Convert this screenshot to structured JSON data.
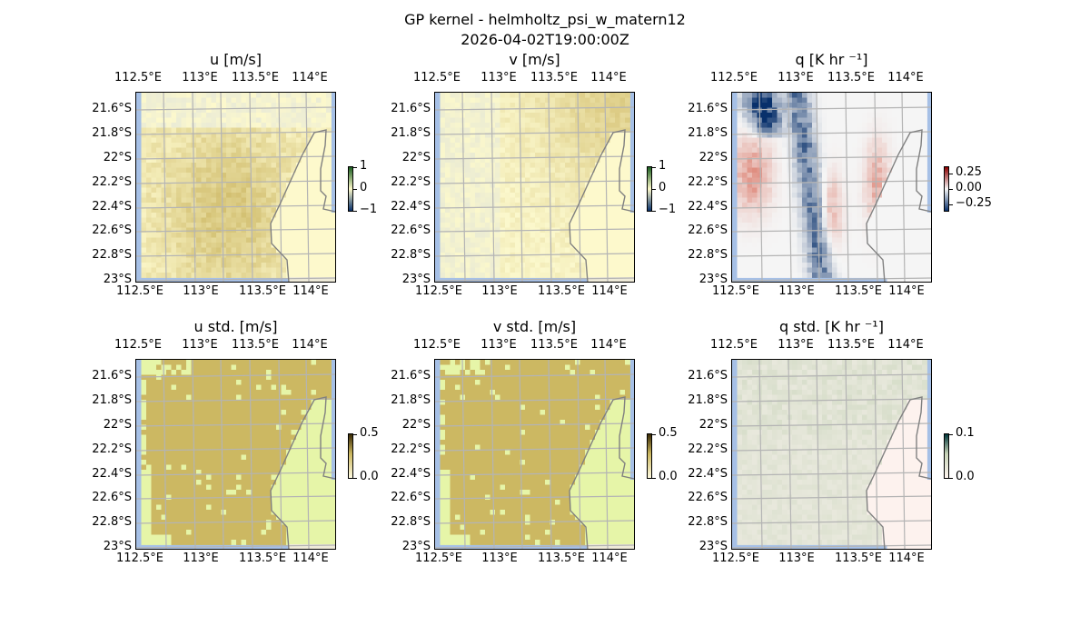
{
  "figure": {
    "title": "GP kernel - helmholtz_psi_w_matern12",
    "timestamp": "2026-04-02T19:00:00Z"
  },
  "axes": {
    "xticks": [
      "112.5°E",
      "113°E",
      "113.5°E",
      "114°E"
    ],
    "yticks": [
      "21.6°S",
      "21.8°S",
      "22°S",
      "22.2°S",
      "22.4°S",
      "22.6°S",
      "22.8°S",
      "23°S"
    ]
  },
  "panels": [
    {
      "title": "u [m/s]",
      "colorbar": {
        "ticks": [
          "1",
          "0",
          "−1"
        ],
        "values": [
          1,
          0,
          -1
        ],
        "range": [
          -1,
          1
        ]
      },
      "colors": [
        "#08306b",
        "#fdfacb",
        "#1b5e20"
      ]
    },
    {
      "title": "v [m/s]",
      "colorbar": {
        "ticks": [
          "1",
          "0",
          "−1"
        ],
        "values": [
          1,
          0,
          -1
        ],
        "range": [
          -1,
          1
        ]
      },
      "colors": [
        "#08306b",
        "#fdfacb",
        "#1b5e20"
      ]
    },
    {
      "title": "q [K hr ⁻¹]",
      "colorbar": {
        "ticks": [
          "0.25",
          "0.00",
          "−0.25"
        ],
        "values": [
          0.25,
          0,
          -0.25
        ],
        "range": [
          -0.35,
          0.35
        ]
      },
      "colors": [
        "#08306b",
        "#f7f7f7",
        "#8b0000"
      ]
    },
    {
      "title": "u std. [m/s]",
      "colorbar": {
        "ticks": [
          "0.5",
          "0.0"
        ],
        "values": [
          0.5,
          0
        ],
        "range": [
          0,
          0.5
        ]
      },
      "colors": [
        "#fffbe0",
        "#ccb860",
        "#3a2a05"
      ]
    },
    {
      "title": "v std. [m/s]",
      "colorbar": {
        "ticks": [
          "0.5",
          "0.0"
        ],
        "values": [
          0.5,
          0
        ],
        "range": [
          0,
          0.5
        ]
      },
      "colors": [
        "#fffbe0",
        "#ccb860",
        "#3a2a05"
      ]
    },
    {
      "title": "q std. [K hr ⁻¹]",
      "colorbar": {
        "ticks": [
          "0.1",
          "0.0"
        ],
        "values": [
          0.1,
          0
        ],
        "range": [
          0,
          0.1
        ]
      },
      "colors": [
        "#fff5f0",
        "#c8d4b8",
        "#00363a"
      ]
    }
  ]
}
